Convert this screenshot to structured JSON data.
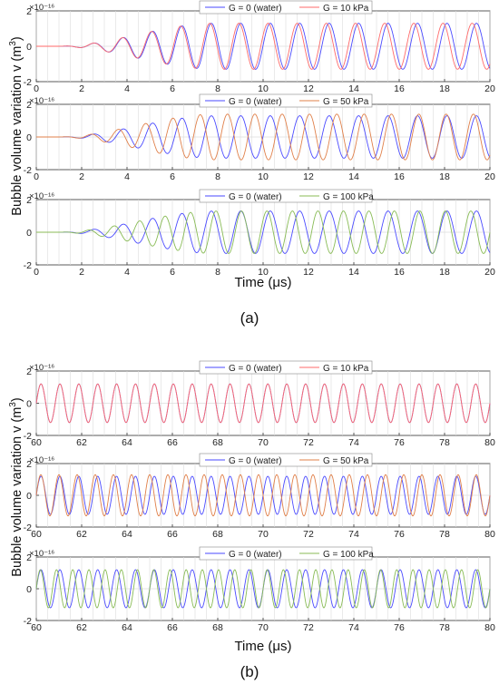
{
  "figure": {
    "ylabel_html": "Bubble volume variation v (m",
    "ylabel_sup": "3",
    "ylabel_close": ")",
    "xlabel": "Time (μs)",
    "panel_labels": [
      "(a)",
      "(b)"
    ]
  },
  "colors": {
    "water": "#4a4aff",
    "g10": "#ff6a6a",
    "g50": "#e0804a",
    "g100": "#88bb55",
    "grid": "#dcdcdc",
    "axis": "#333333"
  },
  "chart_data": [
    {
      "type": "line",
      "group": "a",
      "xlim": [
        0,
        20
      ],
      "ylim": [
        -2,
        2
      ],
      "x_ticks": [
        0,
        2,
        4,
        6,
        8,
        10,
        12,
        14,
        16,
        18,
        20
      ],
      "y_ticks": [
        -2,
        0,
        2
      ],
      "y_exponent": "×10⁻¹⁶",
      "series": [
        {
          "name": "G = 0 (water)",
          "color_key": "water",
          "freq_mhz": 0.77,
          "amplitude": 1.3,
          "onset_us": 0.9
        },
        {
          "name": "G = 10 kPa",
          "color_key": "g10",
          "freq_mhz": 0.778,
          "amplitude": 1.3,
          "onset_us": 0.9
        }
      ],
      "legend": "top"
    },
    {
      "type": "line",
      "group": "a",
      "xlim": [
        0,
        20
      ],
      "ylim": [
        -2,
        2
      ],
      "x_ticks": [
        0,
        2,
        4,
        6,
        8,
        10,
        12,
        14,
        16,
        18,
        20
      ],
      "y_ticks": [
        -2,
        0,
        2
      ],
      "y_exponent": "×10⁻¹⁶",
      "series": [
        {
          "name": "G = 0 (water)",
          "color_key": "water",
          "freq_mhz": 0.77,
          "amplitude": 1.3,
          "onset_us": 0.9
        },
        {
          "name": "G = 50 kPa",
          "color_key": "g50",
          "freq_mhz": 0.83,
          "amplitude": 1.4,
          "onset_us": 0.9
        }
      ],
      "legend": "top"
    },
    {
      "type": "line",
      "group": "a",
      "xlim": [
        0,
        20
      ],
      "ylim": [
        -2,
        2
      ],
      "x_ticks": [
        0,
        2,
        4,
        6,
        8,
        10,
        12,
        14,
        16,
        18,
        20
      ],
      "y_ticks": [
        -2,
        0,
        2
      ],
      "y_exponent": "×10⁻¹⁶",
      "series": [
        {
          "name": "G = 0 (water)",
          "color_key": "water",
          "freq_mhz": 0.77,
          "amplitude": 1.3,
          "onset_us": 0.9
        },
        {
          "name": "G = 100 kPa",
          "color_key": "g100",
          "freq_mhz": 0.89,
          "amplitude": 1.3,
          "onset_us": 0.9
        }
      ],
      "legend": "top"
    },
    {
      "type": "line",
      "group": "b",
      "xlim": [
        60,
        80
      ],
      "ylim": [
        -2,
        2
      ],
      "x_ticks": [
        60,
        62,
        64,
        66,
        68,
        70,
        72,
        74,
        76,
        78,
        80
      ],
      "y_ticks": [
        -2,
        0,
        2
      ],
      "y_exponent": "×10⁻¹⁶",
      "series": [
        {
          "name": "G = 0 (water)",
          "color_key": "water",
          "freq_mhz": 1.2,
          "amplitude": 1.2,
          "onset_us": 0
        },
        {
          "name": "G = 10 kPa",
          "color_key": "g10",
          "freq_mhz": 1.2,
          "amplitude": 1.2,
          "onset_us": 0
        }
      ],
      "legend": "top"
    },
    {
      "type": "line",
      "group": "b",
      "xlim": [
        60,
        80
      ],
      "ylim": [
        -2,
        2
      ],
      "x_ticks": [
        60,
        62,
        64,
        66,
        68,
        70,
        72,
        74,
        76,
        78,
        80
      ],
      "y_ticks": [
        -2,
        0,
        2
      ],
      "y_exponent": "×10⁻¹⁶",
      "series": [
        {
          "name": "G = 0 (water)",
          "color_key": "water",
          "freq_mhz": 1.2,
          "amplitude": 1.2,
          "onset_us": 0
        },
        {
          "name": "G = 50 kPa",
          "color_key": "g50",
          "freq_mhz": 1.25,
          "amplitude": 1.3,
          "onset_us": 0
        }
      ],
      "legend": "top"
    },
    {
      "type": "line",
      "group": "b",
      "xlim": [
        60,
        80
      ],
      "ylim": [
        -2,
        2
      ],
      "x_ticks": [
        60,
        62,
        64,
        66,
        68,
        70,
        72,
        74,
        76,
        78,
        80
      ],
      "y_ticks": [
        -2,
        0,
        2
      ],
      "y_exponent": "×10⁻¹⁶",
      "series": [
        {
          "name": "G = 0 (water)",
          "color_key": "water",
          "freq_mhz": 1.2,
          "amplitude": 1.2,
          "onset_us": 0
        },
        {
          "name": "G = 100 kPa",
          "color_key": "g100",
          "freq_mhz": 1.4,
          "amplitude": 1.2,
          "onset_us": 0
        }
      ],
      "legend": "top"
    }
  ]
}
